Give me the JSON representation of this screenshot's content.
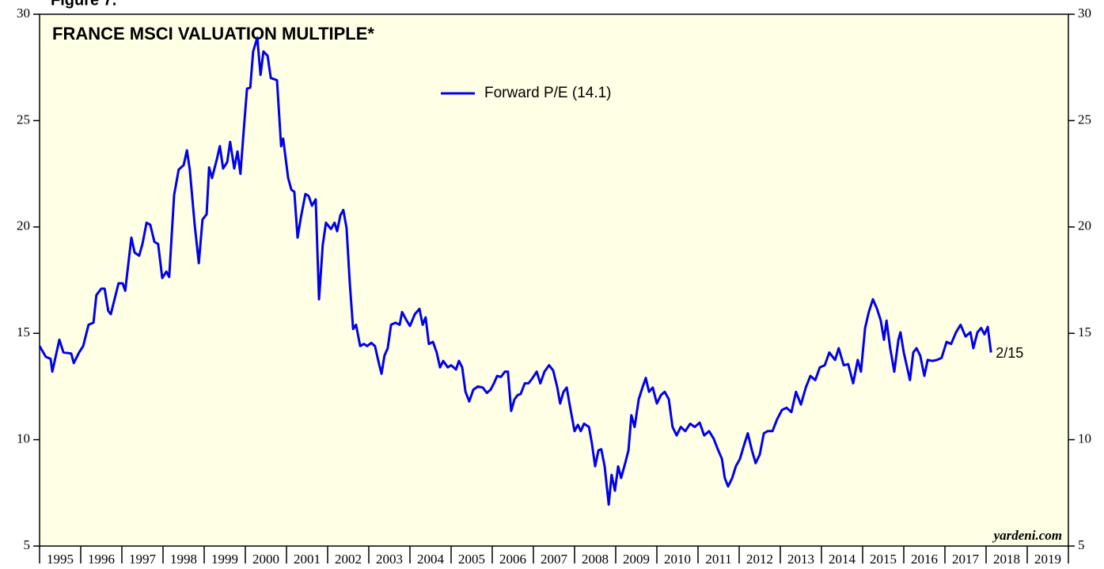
{
  "chart_data": {
    "type": "line",
    "figure_label": "Figure 7.",
    "title": "FRANCE MSCI VALUATION MULTIPLE*",
    "annotation": "2/15",
    "source": "yardeni.com",
    "x": [
      1995.0,
      1995.15,
      1995.27,
      1995.31,
      1995.48,
      1995.58,
      1995.77,
      1995.83,
      1995.96,
      1996.06,
      1996.19,
      1996.31,
      1996.38,
      1996.5,
      1996.58,
      1996.67,
      1996.73,
      1996.92,
      1997.02,
      1997.08,
      1997.23,
      1997.31,
      1997.42,
      1997.5,
      1997.6,
      1997.69,
      1997.79,
      1997.88,
      1997.98,
      1998.08,
      1998.15,
      1998.27,
      1998.38,
      1998.5,
      1998.58,
      1998.65,
      1998.77,
      1998.87,
      1998.96,
      1999.06,
      1999.12,
      1999.19,
      1999.31,
      1999.38,
      1999.46,
      1999.56,
      1999.63,
      1999.73,
      1999.81,
      1999.88,
      1999.96,
      2000.04,
      2000.12,
      2000.19,
      2000.29,
      2000.37,
      2000.44,
      2000.54,
      2000.62,
      2000.77,
      2000.87,
      2000.92,
      2001.04,
      2001.12,
      2001.19,
      2001.27,
      2001.35,
      2001.46,
      2001.54,
      2001.62,
      2001.71,
      2001.79,
      2001.88,
      2001.96,
      2002.08,
      2002.17,
      2002.23,
      2002.31,
      2002.38,
      2002.46,
      2002.54,
      2002.62,
      2002.69,
      2002.79,
      2002.88,
      2002.96,
      2003.06,
      2003.15,
      2003.25,
      2003.31,
      2003.38,
      2003.46,
      2003.54,
      2003.65,
      2003.75,
      2003.81,
      2003.92,
      2004.0,
      2004.12,
      2004.23,
      2004.31,
      2004.38,
      2004.46,
      2004.56,
      2004.65,
      2004.73,
      2004.81,
      2004.92,
      2005.0,
      2005.12,
      2005.19,
      2005.27,
      2005.35,
      2005.44,
      2005.54,
      2005.65,
      2005.77,
      2005.87,
      2005.96,
      2006.04,
      2006.12,
      2006.21,
      2006.31,
      2006.38,
      2006.46,
      2006.54,
      2006.62,
      2006.69,
      2006.79,
      2006.88,
      2006.98,
      2007.08,
      2007.17,
      2007.27,
      2007.38,
      2007.48,
      2007.58,
      2007.65,
      2007.73,
      2007.81,
      2007.88,
      2008.0,
      2008.08,
      2008.15,
      2008.23,
      2008.35,
      2008.42,
      2008.5,
      2008.58,
      2008.65,
      2008.73,
      2008.83,
      2008.9,
      2008.98,
      2009.06,
      2009.13,
      2009.23,
      2009.31,
      2009.38,
      2009.46,
      2009.56,
      2009.65,
      2009.73,
      2009.81,
      2009.9,
      2010.0,
      2010.1,
      2010.19,
      2010.29,
      2010.38,
      2010.48,
      2010.58,
      2010.69,
      2010.81,
      2010.92,
      2011.04,
      2011.15,
      2011.27,
      2011.38,
      2011.48,
      2011.58,
      2011.65,
      2011.73,
      2011.83,
      2011.92,
      2012.02,
      2012.12,
      2012.21,
      2012.31,
      2012.4,
      2012.5,
      2012.6,
      2012.69,
      2012.81,
      2012.92,
      2013.04,
      2013.15,
      2013.27,
      2013.38,
      2013.5,
      2013.62,
      2013.73,
      2013.85,
      2013.96,
      2014.08,
      2014.19,
      2014.33,
      2014.42,
      2014.54,
      2014.65,
      2014.77,
      2014.88,
      2014.96,
      2015.06,
      2015.15,
      2015.25,
      2015.35,
      2015.44,
      2015.52,
      2015.58,
      2015.67,
      2015.77,
      2015.87,
      2015.92,
      2016.0,
      2016.08,
      2016.15,
      2016.23,
      2016.31,
      2016.4,
      2016.5,
      2016.58,
      2016.69,
      2016.81,
      2016.92,
      2017.04,
      2017.15,
      2017.27,
      2017.38,
      2017.5,
      2017.62,
      2017.69,
      2017.79,
      2017.88,
      2017.96,
      2018.04,
      2018.12
    ],
    "series": [
      {
        "name": "Forward P/E (14.1)",
        "color": "#0000ee",
        "values": [
          14.4,
          13.9,
          13.8,
          13.2,
          14.7,
          14.1,
          14.05,
          13.6,
          14.1,
          14.4,
          15.4,
          15.5,
          16.8,
          17.1,
          17.1,
          16.05,
          15.9,
          17.35,
          17.35,
          17.0,
          19.5,
          18.8,
          18.65,
          19.2,
          20.2,
          20.1,
          19.3,
          19.2,
          17.6,
          17.9,
          17.65,
          21.5,
          22.7,
          22.9,
          23.6,
          22.7,
          20.1,
          18.3,
          20.35,
          20.6,
          22.8,
          22.3,
          23.2,
          23.8,
          22.75,
          23.05,
          24.0,
          22.75,
          23.55,
          22.5,
          24.5,
          26.5,
          26.55,
          28.25,
          28.9,
          27.15,
          28.25,
          28.05,
          27.0,
          26.9,
          23.8,
          24.15,
          22.3,
          21.75,
          21.65,
          19.5,
          20.45,
          21.55,
          21.45,
          21.0,
          21.3,
          16.6,
          19.15,
          20.2,
          19.9,
          20.2,
          19.8,
          20.55,
          20.8,
          19.95,
          17.3,
          15.2,
          15.4,
          14.4,
          14.5,
          14.4,
          14.55,
          14.4,
          13.55,
          13.1,
          13.95,
          14.3,
          15.4,
          15.5,
          15.4,
          16.0,
          15.6,
          15.35,
          15.9,
          16.15,
          15.4,
          15.75,
          14.5,
          14.6,
          14.1,
          13.4,
          13.7,
          13.4,
          13.5,
          13.3,
          13.7,
          13.4,
          12.25,
          11.8,
          12.35,
          12.5,
          12.45,
          12.2,
          12.35,
          12.65,
          13.0,
          12.95,
          13.2,
          13.2,
          11.35,
          11.9,
          12.1,
          12.15,
          12.65,
          12.65,
          12.9,
          13.2,
          12.65,
          13.2,
          13.5,
          13.25,
          12.45,
          11.7,
          12.25,
          12.45,
          11.65,
          10.4,
          10.7,
          10.4,
          10.75,
          10.6,
          9.85,
          8.75,
          9.5,
          9.55,
          8.75,
          6.95,
          8.35,
          7.6,
          8.75,
          8.2,
          8.9,
          9.5,
          11.15,
          10.6,
          11.9,
          12.45,
          12.9,
          12.25,
          12.45,
          11.7,
          12.1,
          12.25,
          11.9,
          10.6,
          10.2,
          10.6,
          10.4,
          10.75,
          10.6,
          10.8,
          10.2,
          10.4,
          10.05,
          9.55,
          9.1,
          8.2,
          7.8,
          8.2,
          8.75,
          9.1,
          9.75,
          10.3,
          9.5,
          8.9,
          9.3,
          10.3,
          10.4,
          10.4,
          10.95,
          11.4,
          11.5,
          11.3,
          12.25,
          11.65,
          12.45,
          13.0,
          12.8,
          13.4,
          13.5,
          14.1,
          13.75,
          14.3,
          13.5,
          13.55,
          12.65,
          13.75,
          13.2,
          15.25,
          16.0,
          16.6,
          16.15,
          15.6,
          14.7,
          15.6,
          14.3,
          13.2,
          14.7,
          15.05,
          14.1,
          13.4,
          12.8,
          14.1,
          14.3,
          13.95,
          13.0,
          13.75,
          13.7,
          13.75,
          13.85,
          14.6,
          14.5,
          15.05,
          15.4,
          14.85,
          15.05,
          14.3,
          15.05,
          15.25,
          14.95,
          15.3,
          14.1
        ]
      }
    ],
    "xlim": [
      1995,
      2020
    ],
    "xticks": [
      1995,
      1996,
      1997,
      1998,
      1999,
      2000,
      2001,
      2002,
      2003,
      2004,
      2005,
      2006,
      2007,
      2008,
      2009,
      2010,
      2011,
      2012,
      2013,
      2014,
      2015,
      2016,
      2017,
      2018,
      2019,
      2020
    ],
    "ylim": [
      5,
      30
    ],
    "yticks": [
      5,
      10,
      15,
      20,
      25,
      30
    ],
    "y2lim": [
      5,
      30
    ],
    "y2ticks": [
      5,
      10,
      15,
      20,
      25,
      30
    ],
    "background": "#ffffe6"
  }
}
